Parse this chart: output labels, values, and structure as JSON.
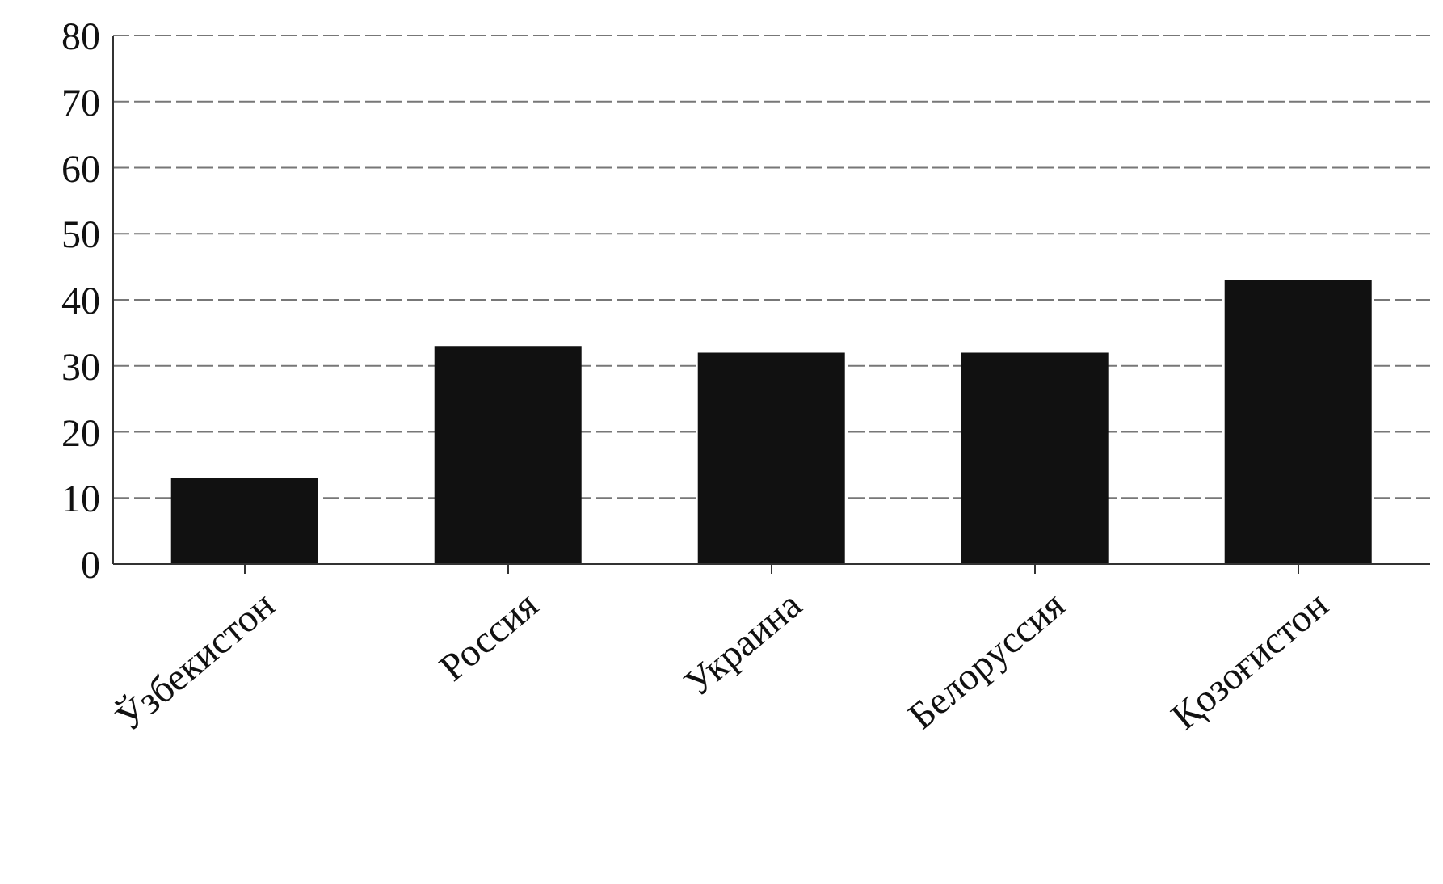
{
  "chart_data": {
    "type": "bar",
    "categories": [
      "Ўзбекистон",
      "Россия",
      "Украина",
      "Белоруссия",
      "Қозоғистон"
    ],
    "values": [
      13,
      33,
      32,
      32,
      43
    ],
    "color": "#111111",
    "ylim": [
      0,
      80
    ],
    "yticks": [
      0,
      10,
      20,
      30,
      40,
      50,
      60,
      70,
      80
    ],
    "grid": "y"
  }
}
